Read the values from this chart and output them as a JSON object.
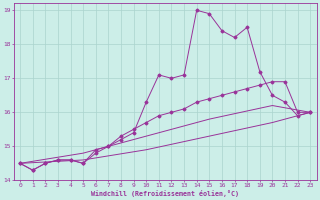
{
  "xlabel": "Windchill (Refroidissement éolien,°C)",
  "xlim": [
    -0.5,
    23.5
  ],
  "ylim": [
    14,
    19.2
  ],
  "yticks": [
    14,
    15,
    16,
    17,
    18,
    19
  ],
  "xticks": [
    0,
    1,
    2,
    3,
    4,
    5,
    6,
    7,
    8,
    9,
    10,
    11,
    12,
    13,
    14,
    15,
    16,
    17,
    18,
    19,
    20,
    21,
    22,
    23
  ],
  "bg_color": "#cceee8",
  "grid_color": "#aad4ce",
  "line_color": "#993399",
  "lines": [
    {
      "x": [
        0,
        1,
        2,
        3,
        4,
        5,
        6,
        7,
        8,
        9,
        10,
        11,
        12,
        13,
        14,
        15,
        16,
        17,
        18,
        19,
        20,
        21,
        22,
        23
      ],
      "y": [
        14.5,
        14.3,
        14.5,
        14.6,
        14.6,
        14.5,
        14.8,
        15.0,
        15.2,
        15.4,
        16.3,
        17.1,
        17.0,
        17.1,
        19.0,
        18.9,
        18.4,
        18.2,
        18.5,
        17.2,
        16.5,
        16.3,
        15.9,
        16.0
      ]
    },
    {
      "x": [
        0,
        1,
        2,
        3,
        4,
        5,
        6,
        7,
        8,
        9,
        10,
        11,
        12,
        13,
        14,
        15,
        16,
        17,
        18,
        19,
        20,
        21,
        22,
        23
      ],
      "y": [
        14.5,
        14.3,
        14.5,
        14.6,
        14.6,
        14.5,
        14.9,
        15.0,
        15.3,
        15.5,
        15.7,
        15.9,
        16.0,
        16.1,
        16.3,
        16.4,
        16.5,
        16.6,
        16.7,
        16.8,
        16.9,
        16.9,
        16.0,
        16.0
      ]
    },
    {
      "x": [
        0,
        23
      ],
      "y": [
        14.5,
        16.0
      ]
    },
    {
      "x": [
        0,
        23
      ],
      "y": [
        14.5,
        16.0
      ]
    }
  ],
  "line3": {
    "x": [
      0,
      5,
      10,
      15,
      20,
      23
    ],
    "y": [
      14.5,
      14.8,
      15.3,
      15.8,
      16.2,
      16.0
    ]
  },
  "line4": {
    "x": [
      0,
      5,
      10,
      15,
      20,
      23
    ],
    "y": [
      14.5,
      14.6,
      14.9,
      15.3,
      15.7,
      16.0
    ]
  }
}
